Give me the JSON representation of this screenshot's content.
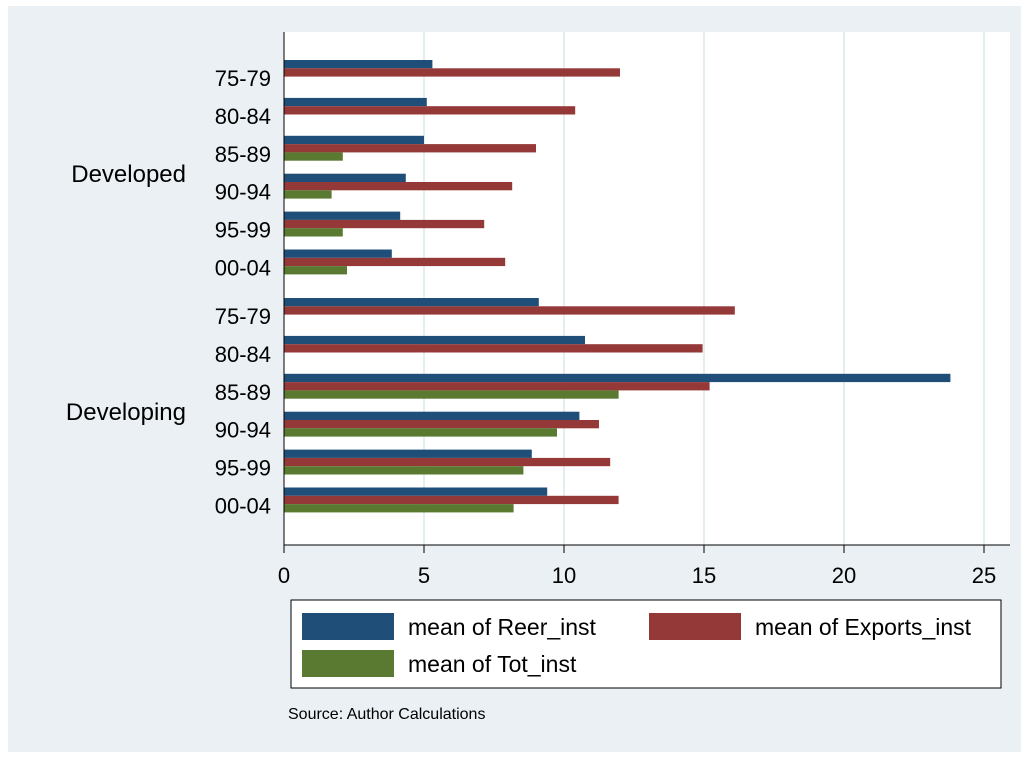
{
  "chart_data": {
    "type": "bar",
    "orientation": "horizontal",
    "groups": [
      {
        "name": "Developed",
        "categories": [
          "75-79",
          "80-84",
          "85-89",
          "90-94",
          "95-99",
          "00-04"
        ]
      },
      {
        "name": "Developing",
        "categories": [
          "75-79",
          "80-84",
          "85-89",
          "90-94",
          "95-99",
          "00-04"
        ]
      }
    ],
    "series": [
      {
        "name": "mean of Reer_inst",
        "color": "#1f4e79",
        "values": [
          5.3,
          5.1,
          5.0,
          4.35,
          4.15,
          3.85,
          9.1,
          10.75,
          23.8,
          10.55,
          8.85,
          9.4
        ]
      },
      {
        "name": "mean of Exports_inst",
        "color": "#943838",
        "values": [
          12.0,
          10.4,
          9.0,
          8.15,
          7.15,
          7.9,
          16.1,
          14.95,
          15.2,
          11.25,
          11.65,
          11.95
        ]
      },
      {
        "name": "mean of Tot_inst",
        "color": "#5a7a32",
        "values": [
          null,
          null,
          2.1,
          1.7,
          2.1,
          2.25,
          null,
          null,
          11.95,
          9.75,
          8.55,
          8.2
        ]
      }
    ],
    "xlim": [
      0,
      26
    ],
    "x_ticks": [
      0,
      5,
      10,
      15,
      20,
      25
    ],
    "x_tick_labels": [
      "0",
      "5",
      "10",
      "15",
      "20",
      "25"
    ],
    "grid": true,
    "legend_position": "bottom",
    "note": "Source:  Author Calculations"
  },
  "colors": {
    "background": "#ffffff",
    "panel": "#eaf0f3",
    "plot": "#ffffff",
    "grid": "#dce8ea"
  }
}
